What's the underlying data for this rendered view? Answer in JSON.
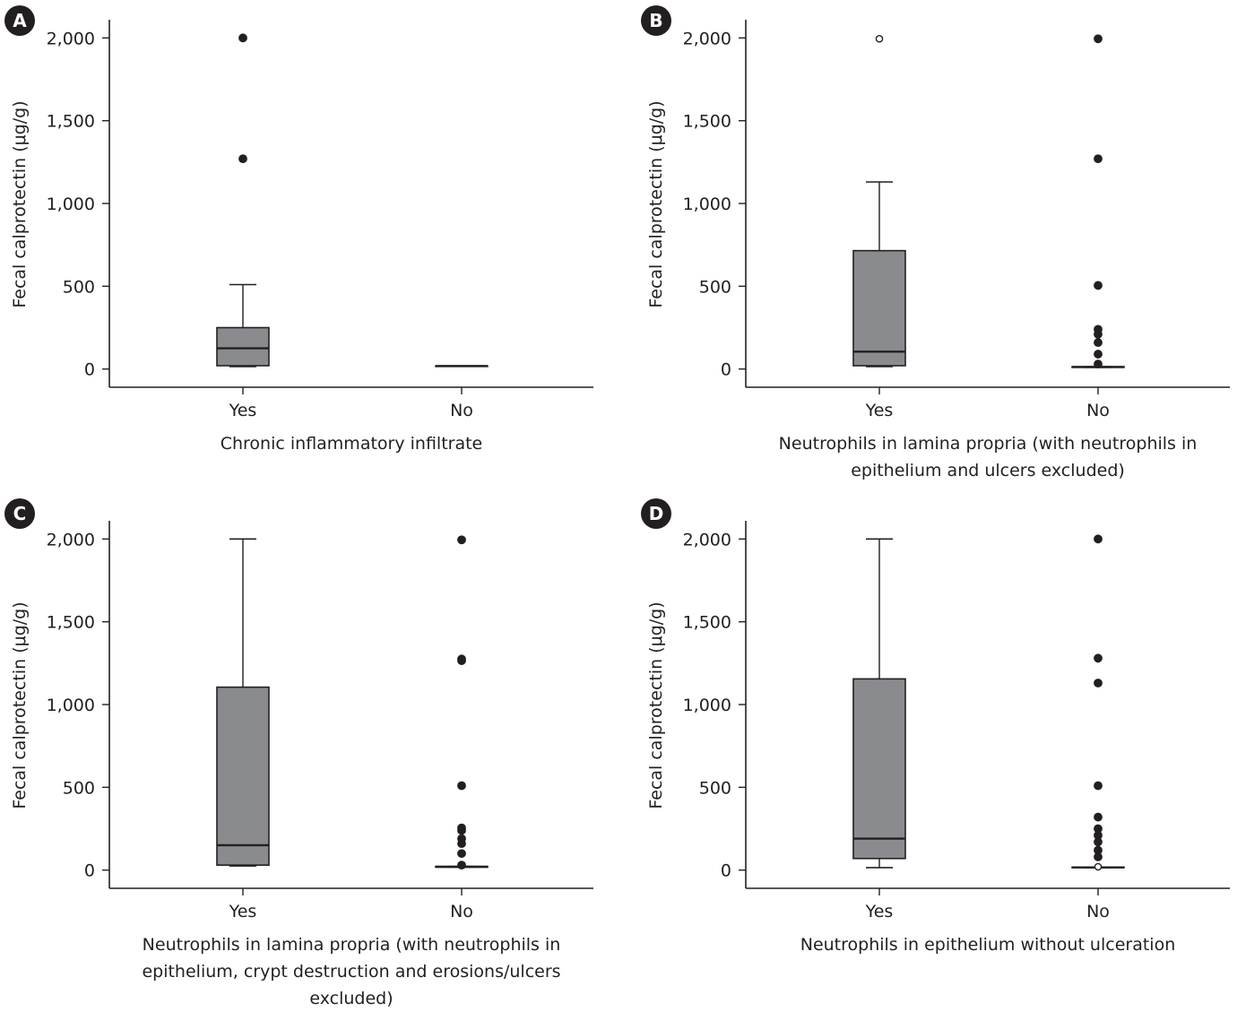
{
  "chart_data": [
    {
      "type": "box",
      "panel_label": "A",
      "ylabel": "Fecal calprotectin (μg/g)",
      "xlabel": "Chronic inflammatory infiltrate",
      "categories": [
        "Yes",
        "No"
      ],
      "yticks": [
        "0",
        "500",
        "1,000",
        "1,500",
        "2,000"
      ],
      "ylim": [
        -110,
        2110
      ],
      "boxes": [
        {
          "whisker_low": 15,
          "q1": 20,
          "median": 125,
          "q3": 250,
          "whisker_high": 510,
          "outliers": [
            {
              "y": 1270,
              "open": false
            },
            {
              "y": 2000,
              "open": false
            }
          ]
        },
        {
          "whisker_low": 18,
          "q1": 18,
          "median": 18,
          "q3": 18,
          "whisker_high": 18,
          "outliers": []
        }
      ]
    },
    {
      "type": "box",
      "panel_label": "B",
      "ylabel": "Fecal calprotectin (μg/g)",
      "xlabel": "Neutrophils in lamina propria (with neutrophils in epithelium and ulcers excluded)",
      "categories": [
        "Yes",
        "No"
      ],
      "yticks": [
        "0",
        "500",
        "1,000",
        "1,500",
        "2,000"
      ],
      "ylim": [
        -110,
        2110
      ],
      "boxes": [
        {
          "whisker_low": 15,
          "q1": 20,
          "median": 105,
          "q3": 715,
          "whisker_high": 1130,
          "outliers": [
            {
              "y": 1995,
              "open": true
            }
          ]
        },
        {
          "whisker_low": 10,
          "q1": 10,
          "median": 12,
          "q3": 14,
          "whisker_high": 14,
          "outliers": [
            {
              "y": 30,
              "open": false
            },
            {
              "y": 90,
              "open": false
            },
            {
              "y": 160,
              "open": false
            },
            {
              "y": 210,
              "open": false
            },
            {
              "y": 240,
              "open": false
            },
            {
              "y": 505,
              "open": false
            },
            {
              "y": 1270,
              "open": false
            },
            {
              "y": 1995,
              "open": false
            }
          ]
        }
      ]
    },
    {
      "type": "box",
      "panel_label": "C",
      "ylabel": "Fecal calprotectin (μg/g)",
      "xlabel": "Neutrophils in lamina propria (with neutrophils in epithelium, crypt destruction and erosions/ulcers excluded)",
      "categories": [
        "Yes",
        "No"
      ],
      "yticks": [
        "0",
        "500",
        "1,000",
        "1,500",
        "2,000"
      ],
      "ylim": [
        -110,
        2110
      ],
      "boxes": [
        {
          "whisker_low": 25,
          "q1": 30,
          "median": 150,
          "q3": 1105,
          "whisker_high": 2000,
          "outliers": []
        },
        {
          "whisker_low": 18,
          "q1": 18,
          "median": 20,
          "q3": 22,
          "whisker_high": 22,
          "outliers": [
            {
              "y": 30,
              "open": false
            },
            {
              "y": 100,
              "open": false
            },
            {
              "y": 160,
              "open": false
            },
            {
              "y": 190,
              "open": false
            },
            {
              "y": 240,
              "open": false
            },
            {
              "y": 255,
              "open": false
            },
            {
              "y": 510,
              "open": false
            },
            {
              "y": 1265,
              "open": false
            },
            {
              "y": 1275,
              "open": false
            },
            {
              "y": 1995,
              "open": false
            }
          ]
        }
      ]
    },
    {
      "type": "box",
      "panel_label": "D",
      "ylabel": "Fecal calprotectin (μg/g)",
      "xlabel": "Neutrophils in epithelium without ulceration",
      "categories": [
        "Yes",
        "No"
      ],
      "yticks": [
        "0",
        "500",
        "1,000",
        "1,500",
        "2,000"
      ],
      "ylim": [
        -110,
        2110
      ],
      "boxes": [
        {
          "whisker_low": 15,
          "q1": 70,
          "median": 190,
          "q3": 1155,
          "whisker_high": 2000,
          "outliers": []
        },
        {
          "whisker_low": 15,
          "q1": 15,
          "median": 16,
          "q3": 18,
          "whisker_high": 18,
          "outliers": [
            {
              "y": 20,
              "open": true
            },
            {
              "y": 80,
              "open": false
            },
            {
              "y": 120,
              "open": false
            },
            {
              "y": 170,
              "open": false
            },
            {
              "y": 210,
              "open": false
            },
            {
              "y": 250,
              "open": false
            },
            {
              "y": 320,
              "open": false
            },
            {
              "y": 510,
              "open": false
            },
            {
              "y": 1130,
              "open": false
            },
            {
              "y": 1280,
              "open": false
            },
            {
              "y": 2000,
              "open": false
            }
          ]
        }
      ]
    }
  ]
}
